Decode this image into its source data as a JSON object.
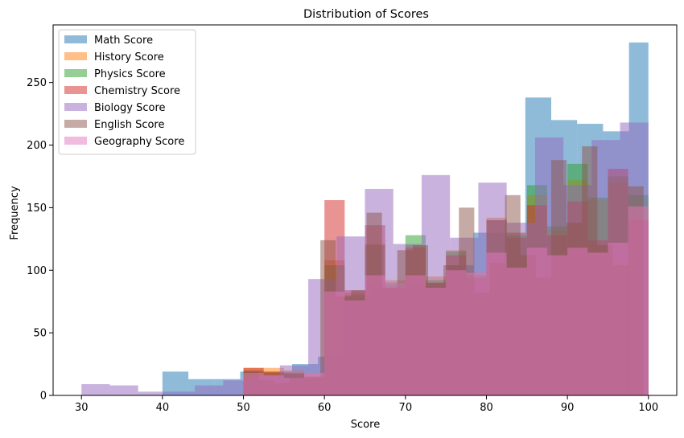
{
  "chart_data": {
    "type": "bar",
    "title": "Distribution of Scores",
    "xlabel": "Score",
    "ylabel": "Frequency",
    "xlim": [
      26.5,
      103.5
    ],
    "ylim": [
      0,
      296
    ],
    "xticks": [
      30,
      40,
      50,
      60,
      70,
      80,
      90,
      100
    ],
    "yticks": [
      0,
      50,
      100,
      150,
      200,
      250
    ],
    "legend_position": "top-left",
    "grid": false,
    "series": [
      {
        "name": "Math Score",
        "color": "#1f77b4",
        "bins": [
          [
            40,
            43.2,
            19
          ],
          [
            43.2,
            46.4,
            13
          ],
          [
            46.4,
            49.6,
            13
          ],
          [
            49.6,
            52.8,
            19
          ],
          [
            52.8,
            56,
            19
          ],
          [
            56,
            59.2,
            25
          ],
          [
            59.2,
            62.4,
            31
          ],
          [
            62.4,
            65.6,
            77
          ],
          [
            65.6,
            68.8,
            88
          ],
          [
            68.8,
            72,
            90
          ],
          [
            72,
            75.2,
            87
          ],
          [
            75.2,
            78.4,
            104
          ],
          [
            78.4,
            81.6,
            130
          ],
          [
            81.6,
            84.8,
            130
          ],
          [
            84.8,
            88,
            238
          ],
          [
            88,
            91.2,
            220
          ],
          [
            91.2,
            94.4,
            217
          ],
          [
            94.4,
            97.6,
            211
          ],
          [
            97.6,
            100,
            282
          ]
        ]
      },
      {
        "name": "History Score",
        "color": "#ff7f0e",
        "bins": [
          [
            50,
            52.5,
            22
          ],
          [
            52.5,
            55,
            22
          ],
          [
            55,
            57.5,
            20
          ],
          [
            57.5,
            60,
            18
          ],
          [
            60,
            62.5,
            108
          ],
          [
            62.5,
            65,
            82
          ],
          [
            65,
            67.5,
            121
          ],
          [
            67.5,
            70,
            92
          ],
          [
            70,
            72.5,
            120
          ],
          [
            72.5,
            75,
            95
          ],
          [
            75,
            77.5,
            116
          ],
          [
            77.5,
            80,
            98
          ],
          [
            80,
            82.5,
            142
          ],
          [
            82.5,
            85,
            130
          ],
          [
            85,
            87.5,
            160
          ],
          [
            87.5,
            90,
            132
          ],
          [
            90,
            92.5,
            172
          ],
          [
            92.5,
            95,
            156
          ],
          [
            95,
            97.5,
            170
          ],
          [
            97.5,
            100,
            151
          ]
        ]
      },
      {
        "name": "Physics Score",
        "color": "#2ca02c",
        "bins": [
          [
            50,
            52.5,
            20
          ],
          [
            52.5,
            55,
            18
          ],
          [
            55,
            57.5,
            17
          ],
          [
            57.5,
            60,
            15
          ],
          [
            60,
            62.5,
            104
          ],
          [
            62.5,
            65,
            80
          ],
          [
            65,
            67.5,
            120
          ],
          [
            67.5,
            70,
            90
          ],
          [
            70,
            72.5,
            128
          ],
          [
            72.5,
            75,
            92
          ],
          [
            75,
            77.5,
            115
          ],
          [
            77.5,
            80,
            96
          ],
          [
            80,
            82.5,
            140
          ],
          [
            82.5,
            85,
            128
          ],
          [
            85,
            87.5,
            168
          ],
          [
            87.5,
            90,
            135
          ],
          [
            90,
            92.5,
            185
          ],
          [
            92.5,
            95,
            158
          ],
          [
            95,
            97.5,
            175
          ],
          [
            97.5,
            100,
            160
          ]
        ]
      },
      {
        "name": "Chemistry Score",
        "color": "#d62728",
        "bins": [
          [
            50,
            52.5,
            22
          ],
          [
            52.5,
            55,
            19
          ],
          [
            55,
            57.5,
            18
          ],
          [
            57.5,
            60,
            15
          ],
          [
            60,
            62.5,
            156
          ],
          [
            62.5,
            65,
            84
          ],
          [
            65,
            67.5,
            136
          ],
          [
            67.5,
            70,
            86
          ],
          [
            70,
            72.5,
            118
          ],
          [
            72.5,
            75,
            90
          ],
          [
            75,
            77.5,
            112
          ],
          [
            77.5,
            80,
            94
          ],
          [
            80,
            82.5,
            140
          ],
          [
            82.5,
            85,
            126
          ],
          [
            85,
            87.5,
            152
          ],
          [
            87.5,
            90,
            128
          ],
          [
            90,
            92.5,
            155
          ],
          [
            92.5,
            95,
            124
          ],
          [
            95,
            97.5,
            181
          ],
          [
            97.5,
            100,
            140
          ]
        ]
      },
      {
        "name": "Biology Score",
        "color": "#9467bd",
        "bins": [
          [
            30,
            33.5,
            9
          ],
          [
            33.5,
            37,
            8
          ],
          [
            37,
            40.5,
            3
          ],
          [
            40.5,
            44,
            3
          ],
          [
            44,
            47.5,
            8
          ],
          [
            47.5,
            51,
            12
          ],
          [
            51,
            54.5,
            16
          ],
          [
            54.5,
            58,
            24
          ],
          [
            58,
            61.5,
            93
          ],
          [
            61.5,
            65,
            127
          ],
          [
            65,
            68.5,
            165
          ],
          [
            68.5,
            72,
            121
          ],
          [
            72,
            75.5,
            176
          ],
          [
            75.5,
            79,
            126
          ],
          [
            79,
            82.5,
            170
          ],
          [
            82.5,
            86,
            138
          ],
          [
            86,
            89.5,
            206
          ],
          [
            89.5,
            93,
            168
          ],
          [
            93,
            96.5,
            204
          ],
          [
            96.5,
            100,
            218
          ]
        ]
      },
      {
        "name": "English Score",
        "color": "#8c564b",
        "bins": [
          [
            50,
            51.9,
            19
          ],
          [
            51.9,
            53.8,
            12
          ],
          [
            53.8,
            55.7,
            10
          ],
          [
            55.7,
            57.6,
            14
          ],
          [
            57.6,
            59.5,
            14
          ],
          [
            59.5,
            61.4,
            124
          ],
          [
            61.4,
            63.3,
            79
          ],
          [
            63.3,
            65.2,
            84
          ],
          [
            65.2,
            67.1,
            146
          ],
          [
            67.1,
            69,
            86
          ],
          [
            69,
            70.9,
            116
          ],
          [
            70.9,
            72.8,
            120
          ],
          [
            72.8,
            74.7,
            90
          ],
          [
            74.7,
            76.6,
            104
          ],
          [
            76.6,
            78.5,
            150
          ],
          [
            78.5,
            80.4,
            82
          ],
          [
            80.4,
            82.3,
            106
          ],
          [
            82.3,
            84.2,
            160
          ],
          [
            84.2,
            86.1,
            112
          ],
          [
            86.1,
            88,
            94
          ],
          [
            88,
            89.9,
            188
          ],
          [
            89.9,
            91.8,
            138
          ],
          [
            91.8,
            93.7,
            199
          ],
          [
            93.7,
            95.6,
            120
          ],
          [
            95.6,
            97.5,
            104
          ],
          [
            97.5,
            99.4,
            167
          ]
        ]
      },
      {
        "name": "Geography Score",
        "color": "#e377c2",
        "bins": [
          [
            50,
            52.5,
            18
          ],
          [
            52.5,
            55,
            16
          ],
          [
            55,
            57.5,
            14
          ],
          [
            57.5,
            60,
            18
          ],
          [
            60,
            62.5,
            83
          ],
          [
            62.5,
            65,
            76
          ],
          [
            65,
            67.5,
            96
          ],
          [
            67.5,
            70,
            90
          ],
          [
            70,
            72.5,
            96
          ],
          [
            72.5,
            75,
            86
          ],
          [
            75,
            77.5,
            100
          ],
          [
            77.5,
            80,
            98
          ],
          [
            80,
            82.5,
            114
          ],
          [
            82.5,
            85,
            102
          ],
          [
            85,
            87.5,
            118
          ],
          [
            87.5,
            90,
            112
          ],
          [
            90,
            92.5,
            118
          ],
          [
            92.5,
            95,
            114
          ],
          [
            95,
            97.5,
            122
          ],
          [
            97.5,
            100,
            151
          ]
        ]
      }
    ]
  }
}
